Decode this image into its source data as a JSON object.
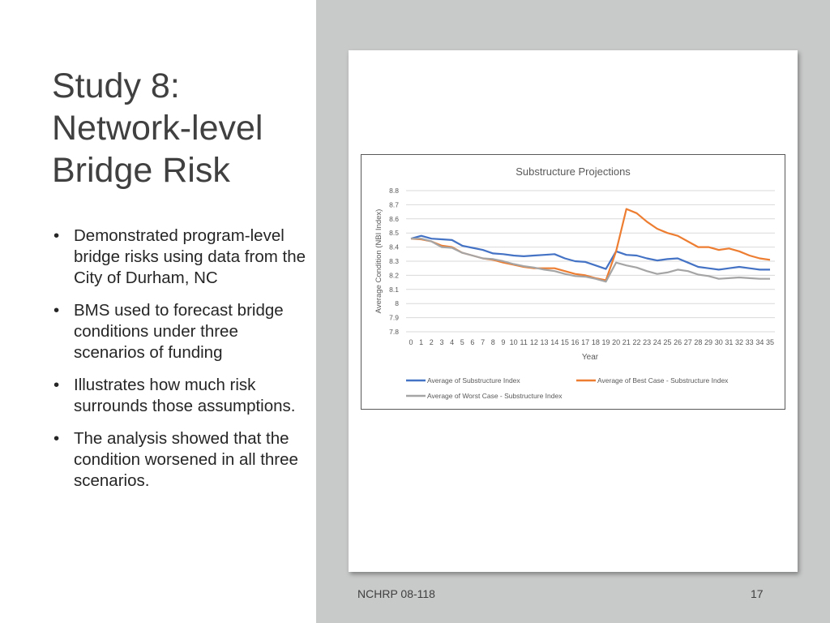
{
  "slide": {
    "title_lines": [
      "Study 8:",
      "Network-level",
      "Bridge Risk"
    ],
    "bullets": [
      "Demonstrated program-level bridge risks using data from the City of Durham, NC",
      "BMS used to forecast bridge conditions under three scenarios of funding",
      "Illustrates how much risk surrounds those assumptions.",
      "The analysis showed that the condition worsened in all three scenarios."
    ],
    "bullet_glyph": "•",
    "footer_left": "NCHRP 08-118",
    "page_number": "17"
  },
  "chart_data": {
    "type": "line",
    "title": "Substructure Projections",
    "xlabel": "Year",
    "ylabel": "Average Condition (NBI Index)",
    "x": [
      0,
      1,
      2,
      3,
      4,
      5,
      6,
      7,
      8,
      9,
      10,
      11,
      12,
      13,
      14,
      15,
      16,
      17,
      18,
      19,
      20,
      21,
      22,
      23,
      24,
      25,
      26,
      27,
      28,
      29,
      30,
      31,
      32,
      33,
      34,
      35
    ],
    "ylim": [
      7.8,
      8.8
    ],
    "yticks": [
      8.8,
      8.7,
      8.6,
      8.5,
      8.4,
      8.3,
      8.2,
      8.1,
      8,
      7.9,
      7.8
    ],
    "grid": true,
    "legend_position": "bottom",
    "series": [
      {
        "name": "Average of Substructure Index",
        "color": "#4472c4",
        "values": [
          8.46,
          8.48,
          8.46,
          8.455,
          8.45,
          8.41,
          8.395,
          8.38,
          8.355,
          8.35,
          8.34,
          8.335,
          8.34,
          8.345,
          8.35,
          8.32,
          8.3,
          8.295,
          8.27,
          8.245,
          8.37,
          8.345,
          8.34,
          8.32,
          8.305,
          8.315,
          8.32,
          8.29,
          8.26,
          8.25,
          8.24,
          8.25,
          8.26,
          8.25,
          8.24,
          8.24
        ]
      },
      {
        "name": "Average of Best Case - Substructure Index",
        "color": "#ed7d31",
        "values": [
          8.46,
          8.455,
          8.44,
          8.41,
          8.4,
          8.36,
          8.34,
          8.32,
          8.31,
          8.29,
          8.275,
          8.26,
          8.25,
          8.25,
          8.25,
          8.23,
          8.21,
          8.2,
          8.18,
          8.165,
          8.37,
          8.67,
          8.64,
          8.58,
          8.53,
          8.5,
          8.48,
          8.44,
          8.4,
          8.4,
          8.38,
          8.39,
          8.37,
          8.34,
          8.32,
          8.31
        ]
      },
      {
        "name": "Average of Worst Case - Substructure Index",
        "color": "#a5a5a5",
        "values": [
          8.46,
          8.46,
          8.44,
          8.4,
          8.395,
          8.36,
          8.34,
          8.32,
          8.315,
          8.3,
          8.28,
          8.265,
          8.255,
          8.24,
          8.23,
          8.21,
          8.195,
          8.19,
          8.175,
          8.155,
          8.29,
          8.27,
          8.255,
          8.23,
          8.21,
          8.22,
          8.24,
          8.23,
          8.205,
          8.195,
          8.175,
          8.18,
          8.185,
          8.18,
          8.175,
          8.175
        ]
      }
    ]
  }
}
